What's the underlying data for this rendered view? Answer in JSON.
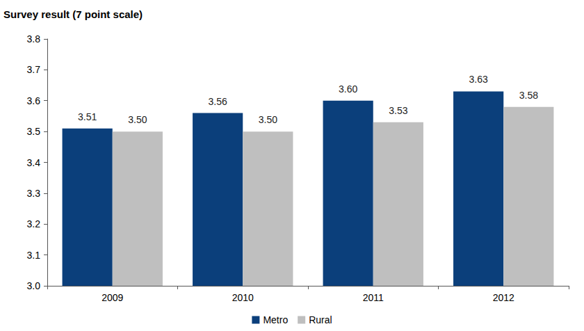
{
  "chart_data": {
    "type": "bar",
    "y_label": "Survey result (7 point scale)",
    "categories": [
      "2009",
      "2010",
      "2011",
      "2012"
    ],
    "series": [
      {
        "name": "Metro",
        "color": "#0b3f7b",
        "values": [
          3.51,
          3.56,
          3.6,
          3.63
        ],
        "value_labels": [
          "3.51",
          "3.56",
          "3.60",
          "3.63"
        ]
      },
      {
        "name": "Rural",
        "color": "#bfbfbf",
        "values": [
          3.5,
          3.5,
          3.53,
          3.58
        ],
        "value_labels": [
          "3.50",
          "3.50",
          "3.53",
          "3.58"
        ]
      }
    ],
    "ylim": [
      3,
      3.8
    ],
    "yticks": [
      {
        "value": 3,
        "label": "3.0"
      },
      3.1,
      3.2,
      3.3,
      3.4,
      3.5,
      3.6,
      3.7,
      3.8
    ],
    "grid": false,
    "legend": "bottom",
    "data_labels": true
  }
}
